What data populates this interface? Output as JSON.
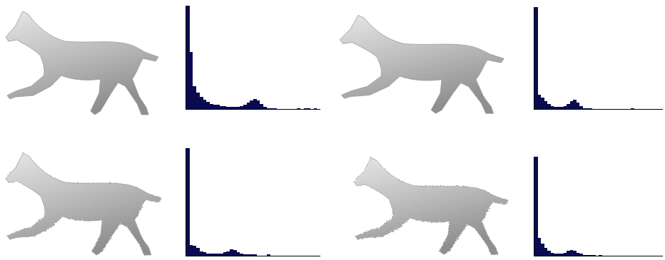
{
  "chart_data": [
    {
      "type": "histogram",
      "color": "#0a0a50",
      "tick_labels": false,
      "grid": false,
      "bins": [
        0,
        1,
        2,
        3,
        4,
        5,
        6,
        7,
        8,
        9,
        10,
        11,
        12,
        13,
        14,
        15,
        16,
        17,
        18,
        19,
        20,
        21,
        22,
        23,
        24,
        25,
        26,
        27,
        28,
        29,
        30,
        31,
        32,
        33,
        34,
        35,
        36,
        37,
        38,
        39,
        40
      ],
      "counts": [
        100,
        55,
        22,
        16,
        12,
        9,
        7,
        5,
        4,
        4,
        3,
        3,
        2,
        2,
        2,
        2,
        3,
        4,
        6,
        8,
        10,
        8,
        5,
        2,
        1,
        1,
        1,
        0,
        0,
        0,
        0,
        0,
        0,
        1,
        0,
        1,
        1,
        0,
        1,
        0
      ],
      "xlim": [
        0,
        40
      ],
      "ylim": [
        0,
        100
      ]
    },
    {
      "type": "histogram",
      "color": "#0a0a50",
      "tick_labels": false,
      "grid": false,
      "bins": [
        0,
        1,
        2,
        3,
        4,
        5,
        6,
        7,
        8,
        9,
        10,
        11,
        12,
        13,
        14,
        15,
        16,
        17,
        18,
        19,
        20,
        21,
        22,
        23,
        24,
        25,
        26,
        27,
        28,
        29,
        30,
        31,
        32,
        33,
        34,
        35,
        36,
        37,
        38,
        39,
        40
      ],
      "counts": [
        100,
        14,
        11,
        8,
        5,
        3,
        2,
        2,
        2,
        3,
        5,
        8,
        9,
        6,
        3,
        1,
        1,
        1,
        0,
        0,
        0,
        0,
        0,
        0,
        0,
        0,
        0,
        0,
        0,
        0,
        1,
        0,
        0,
        0,
        0,
        0,
        0,
        0,
        0,
        0
      ],
      "xlim": [
        0,
        40
      ],
      "ylim": [
        0,
        100
      ]
    },
    {
      "type": "histogram",
      "color": "#0a0a50",
      "tick_labels": false,
      "grid": false,
      "bins": [
        0,
        1,
        2,
        3,
        4,
        5,
        6,
        7,
        8,
        9,
        10,
        11,
        12,
        13,
        14,
        15,
        16,
        17,
        18,
        19,
        20,
        21,
        22,
        23,
        24,
        25,
        26,
        27,
        28,
        29,
        30,
        31,
        32,
        33,
        34,
        35,
        36,
        37,
        38,
        39,
        40
      ],
      "counts": [
        100,
        10,
        9,
        7,
        4,
        3,
        2,
        2,
        2,
        2,
        2,
        3,
        4,
        6,
        5,
        3,
        2,
        1,
        1,
        1,
        1,
        0,
        0,
        0,
        1,
        0,
        0,
        0,
        0,
        0,
        0,
        0,
        0,
        0,
        0,
        0,
        0,
        0,
        0,
        0
      ],
      "xlim": [
        0,
        40
      ],
      "ylim": [
        0,
        100
      ]
    },
    {
      "type": "histogram",
      "color": "#0a0a50",
      "tick_labels": false,
      "grid": false,
      "bins": [
        0,
        1,
        2,
        3,
        4,
        5,
        6,
        7,
        8,
        9,
        10,
        11,
        12,
        13,
        14,
        15,
        16,
        17,
        18,
        19,
        20,
        21,
        22,
        23,
        24,
        25,
        26,
        27,
        28,
        29,
        30,
        31,
        32,
        33,
        34,
        35,
        36,
        37,
        38,
        39,
        40
      ],
      "counts": [
        100,
        18,
        12,
        8,
        5,
        3,
        2,
        2,
        2,
        3,
        5,
        6,
        5,
        3,
        2,
        1,
        1,
        1,
        1,
        0,
        1,
        0,
        0,
        0,
        0,
        0,
        0,
        0,
        0,
        0,
        0,
        0,
        0,
        0,
        0,
        0,
        0,
        0,
        0,
        0
      ],
      "xlim": [
        0,
        40
      ],
      "ylim": [
        0,
        100
      ]
    }
  ]
}
